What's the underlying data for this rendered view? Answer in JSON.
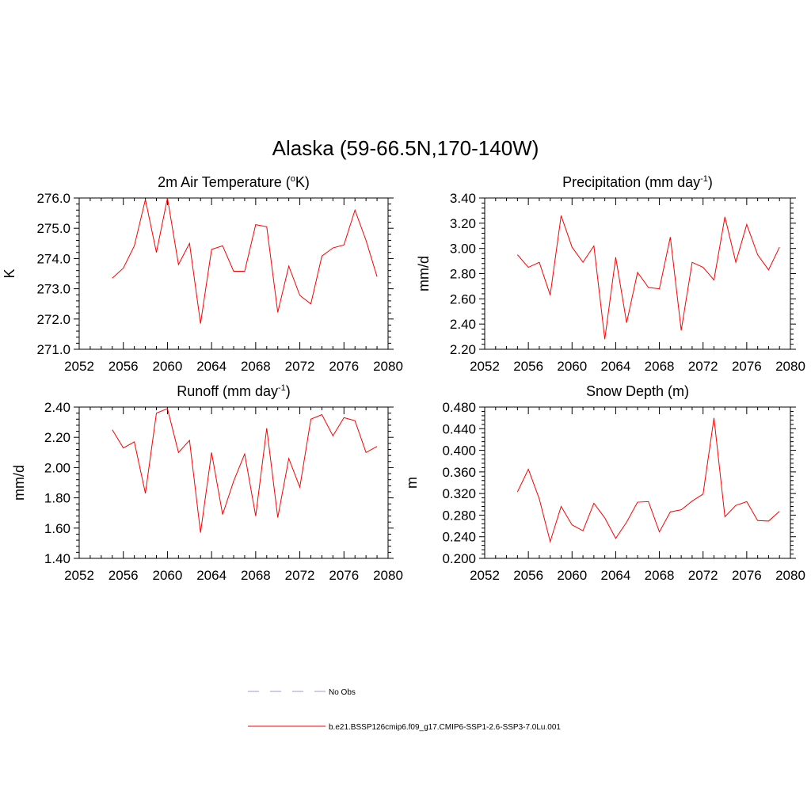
{
  "figure": {
    "title": "Alaska (59-66.5N,170-140W)",
    "series_color": "#ff0000",
    "no_obs_color": "#9999dd"
  },
  "legend": {
    "no_obs_label": "No Obs",
    "run_label": "b.e21.BSSP126cmip6.f09_g17.CMIP6-SSP1-2.6-SSP3-7.0Lu.001"
  },
  "chart_data": [
    {
      "type": "line",
      "title": "2m Air Temperature (°K)",
      "title_main": "2m Air Temperature (",
      "title_sup": "o",
      "title_after": "K)",
      "ylabel": "K",
      "xlim": [
        2052,
        2080
      ],
      "ylim": [
        271.0,
        276.0
      ],
      "x_ticks": [
        "2052",
        "2056",
        "2060",
        "2064",
        "2068",
        "2072",
        "2076",
        "2080"
      ],
      "y_ticks": [
        "271.0",
        "272.0",
        "273.0",
        "274.0",
        "275.0",
        "276.0"
      ],
      "x": [
        2055,
        2056,
        2057,
        2058,
        2059,
        2060,
        2061,
        2062,
        2063,
        2064,
        2065,
        2066,
        2067,
        2068,
        2069,
        2070,
        2071,
        2072,
        2073,
        2074,
        2075,
        2076,
        2077,
        2078,
        2079
      ],
      "series": [
        {
          "name": "b.e21.BSSP126cmip6.f09_g17.CMIP6-SSP1-2.6-SSP3-7.0Lu.001",
          "values": [
            273.35,
            273.68,
            274.42,
            275.95,
            274.2,
            276.0,
            273.8,
            274.5,
            271.85,
            274.3,
            274.42,
            273.58,
            273.58,
            275.12,
            275.05,
            272.22,
            273.75,
            272.78,
            272.5,
            274.08,
            274.35,
            274.45,
            275.6,
            274.6,
            273.4
          ]
        }
      ]
    },
    {
      "type": "line",
      "title": "Precipitation (mm day-1)",
      "title_main": "Precipitation (mm day",
      "title_sup": "-1",
      "title_after": ")",
      "ylabel": "mm/d",
      "xlim": [
        2052,
        2080
      ],
      "ylim": [
        2.2,
        3.4
      ],
      "x_ticks": [
        "2052",
        "2056",
        "2060",
        "2064",
        "2068",
        "2072",
        "2076",
        "2080"
      ],
      "y_ticks": [
        "2.20",
        "2.40",
        "2.60",
        "2.80",
        "3.00",
        "3.20",
        "3.40"
      ],
      "x": [
        2055,
        2056,
        2057,
        2058,
        2059,
        2060,
        2061,
        2062,
        2063,
        2064,
        2065,
        2066,
        2067,
        2068,
        2069,
        2070,
        2071,
        2072,
        2073,
        2074,
        2075,
        2076,
        2077,
        2078,
        2079
      ],
      "series": [
        {
          "name": "b.e21.BSSP126cmip6.f09_g17.CMIP6-SSP1-2.6-SSP3-7.0Lu.001",
          "values": [
            2.95,
            2.85,
            2.89,
            2.63,
            3.26,
            3.01,
            2.89,
            3.02,
            2.28,
            2.93,
            2.41,
            2.81,
            2.69,
            2.68,
            3.09,
            2.35,
            2.89,
            2.85,
            2.75,
            3.25,
            2.89,
            3.19,
            2.95,
            2.83,
            3.01
          ]
        }
      ]
    },
    {
      "type": "line",
      "title": "Runoff (mm day-1)",
      "title_main": "Runoff (mm day",
      "title_sup": "-1",
      "title_after": ")",
      "ylabel": "mm/d",
      "xlim": [
        2052,
        2080
      ],
      "ylim": [
        1.4,
        2.4
      ],
      "x_ticks": [
        "2052",
        "2056",
        "2060",
        "2064",
        "2068",
        "2072",
        "2076",
        "2080"
      ],
      "y_ticks": [
        "1.40",
        "1.60",
        "1.80",
        "2.00",
        "2.20",
        "2.40"
      ],
      "x": [
        2055,
        2056,
        2057,
        2058,
        2059,
        2060,
        2061,
        2062,
        2063,
        2064,
        2065,
        2066,
        2067,
        2068,
        2069,
        2070,
        2071,
        2072,
        2073,
        2074,
        2075,
        2076,
        2077,
        2078,
        2079
      ],
      "series": [
        {
          "name": "b.e21.BSSP126cmip6.f09_g17.CMIP6-SSP1-2.6-SSP3-7.0Lu.001",
          "values": [
            2.25,
            2.13,
            2.17,
            1.83,
            2.36,
            2.39,
            2.1,
            2.18,
            1.57,
            2.1,
            1.69,
            1.91,
            2.09,
            1.68,
            2.26,
            1.67,
            2.06,
            1.87,
            2.32,
            2.35,
            2.21,
            2.33,
            2.31,
            2.1,
            2.14
          ]
        }
      ]
    },
    {
      "type": "line",
      "title": "Snow Depth (m)",
      "title_main": "Snow Depth (m)",
      "title_sup": "",
      "title_after": "",
      "ylabel": "m",
      "xlim": [
        2052,
        2080
      ],
      "ylim": [
        0.2,
        0.48
      ],
      "x_ticks": [
        "2052",
        "2056",
        "2060",
        "2064",
        "2068",
        "2072",
        "2076",
        "2080"
      ],
      "y_ticks": [
        "0.200",
        "0.240",
        "0.280",
        "0.320",
        "0.360",
        "0.400",
        "0.440",
        "0.480"
      ],
      "x": [
        2055,
        2056,
        2057,
        2058,
        2059,
        2060,
        2061,
        2062,
        2063,
        2064,
        2065,
        2066,
        2067,
        2068,
        2069,
        2070,
        2071,
        2072,
        2073,
        2074,
        2075,
        2076,
        2077,
        2078,
        2079
      ],
      "series": [
        {
          "name": "b.e21.BSSP126cmip6.f09_g17.CMIP6-SSP1-2.6-SSP3-7.0Lu.001",
          "values": [
            0.323,
            0.365,
            0.31,
            0.231,
            0.296,
            0.262,
            0.251,
            0.302,
            0.275,
            0.237,
            0.267,
            0.304,
            0.305,
            0.249,
            0.286,
            0.29,
            0.306,
            0.319,
            0.46,
            0.277,
            0.298,
            0.305,
            0.27,
            0.269,
            0.287
          ]
        }
      ]
    }
  ]
}
